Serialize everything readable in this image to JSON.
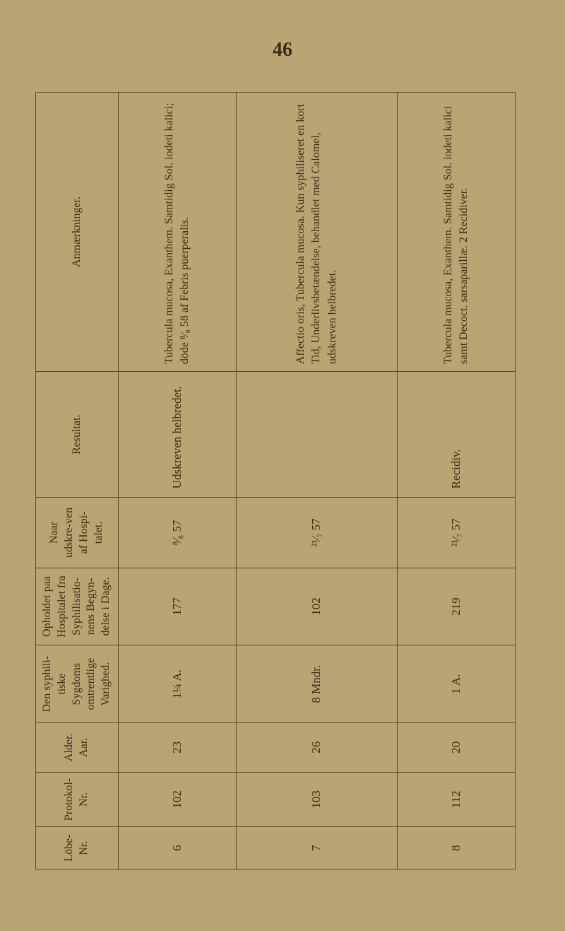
{
  "page_number": "46",
  "headers": {
    "lobe": "Löbe-Nr.",
    "protokol": "Protokol-Nr.",
    "alder": "Alder.",
    "alder_sub": "Aar.",
    "syphili": "Den syphili-tiske Sygdoms omtrentlige Varighed.",
    "opholdet": "Opholdet paa Hospitalet fra Syphilisatio-nens Begyn-delse i Dage.",
    "naar": "Naar udskre-ven af Hospi-talet.",
    "resultat": "Resultat.",
    "anmaerk": "Anmærkninger."
  },
  "rows": [
    {
      "lobe": "6",
      "protokol": "102",
      "alder": "23",
      "syph": "1¼ A.",
      "ophold": "177",
      "naar": "⁸⁄₈ 57",
      "resultat": "Udskreven helbredet.",
      "anm": "Tubercula mucosa, Exanthem. Samtidig Sol. iodeti kalici; döde ⁸⁄₈ 58 af Febris puerperalis."
    },
    {
      "lobe": "7",
      "protokol": "103",
      "alder": "26",
      "syph": "8 Mndr.",
      "ophold": "102",
      "naar": "²¹⁄₇ 57",
      "resultat": "",
      "anm": "Affectio oris, Tubercula mucosa. Kun syphiliseret en kort Tid, Underlivsbetændelse, behandlet med Calomel, udskreven helbredet."
    },
    {
      "lobe": "8",
      "protokol": "112",
      "alder": "20",
      "syph": "1 A.",
      "ophold": "219",
      "naar": "²¹⁄₇ 57",
      "resultat": "Recidiv.",
      "anm": "Tubercula mucosa, Exanthem. Samtidig Sol. iodeti kalici samt Decoct. sarsaparillæ. 2 Recidiver."
    }
  ],
  "colors": {
    "background": "#b8a573",
    "text": "#3a2f1a",
    "border": "#5a4a2a"
  }
}
